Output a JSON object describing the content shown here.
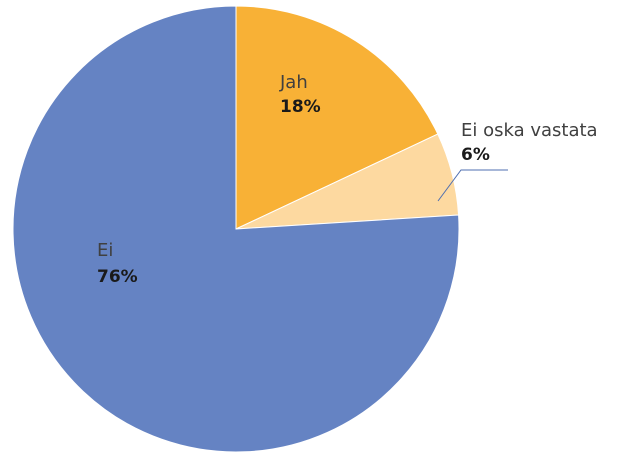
{
  "chart_data": {
    "type": "pie",
    "title": "",
    "slices": [
      {
        "label": "Jah",
        "value": 18,
        "value_label": "18%",
        "color": "#F8B136"
      },
      {
        "label": "Ei oska vastata",
        "value": 6,
        "value_label": "6%",
        "color": "#FDD9A0"
      },
      {
        "label": "Ei",
        "value": 76,
        "value_label": "76%",
        "color": "#6583C3"
      }
    ],
    "start_angle_deg": 0,
    "direction": "clockwise",
    "legend": "none",
    "data_labels": "category name and percentage"
  }
}
